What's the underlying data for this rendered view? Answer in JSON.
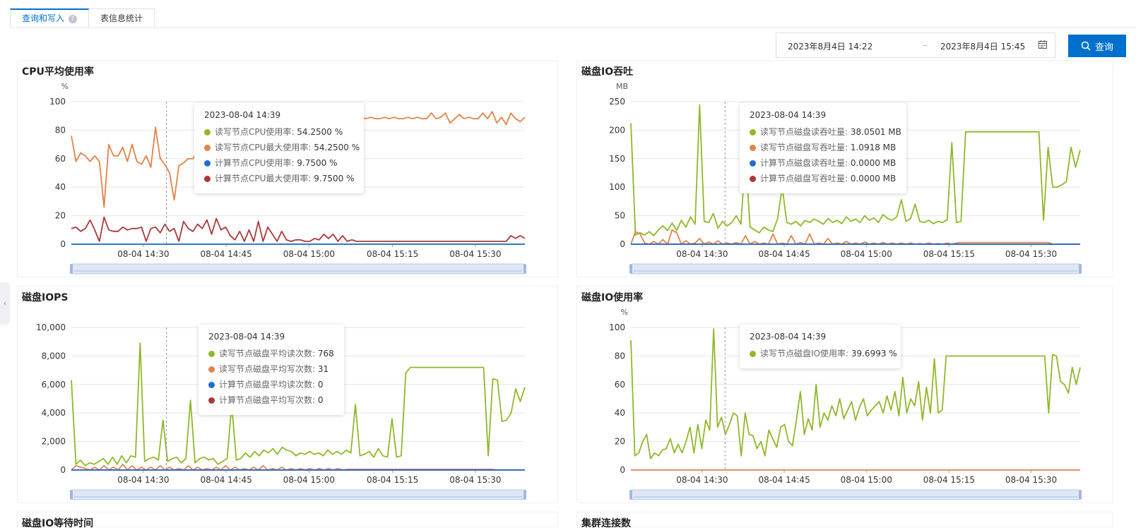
{
  "tabs": [
    {
      "label": "查询和写入",
      "active": true
    },
    {
      "label": "表信息统计",
      "active": false
    }
  ],
  "help_glyph": "?",
  "date_range": {
    "start": "2023年8月4日 14:22",
    "separator": "-",
    "end": "2023年8月4日 15:45"
  },
  "query_button": "查询",
  "colors": {
    "green": "#8fb82a",
    "orange": "#e0834a",
    "blue": "#1f6fd1",
    "red": "#a83a3a",
    "accent": "#0070cc"
  },
  "x_ticks": [
    "08-04 14:30",
    "08-04 14:45",
    "08-04 15:00",
    "08-04 15:15",
    "08-04 15:30"
  ],
  "panels": {
    "cpu": {
      "title": "CPU平均使用率",
      "unit": "%",
      "y_ticks": [
        "100",
        "80",
        "60",
        "40",
        "20",
        "0"
      ],
      "tooltip": {
        "title": "2023-08-04 14:39",
        "rows": [
          {
            "label": "读写节点CPU使用率: ",
            "value": "54.2500 %",
            "color": "green"
          },
          {
            "label": "读写节点CPU最大使用率: ",
            "value": "54.2500 %",
            "color": "orange"
          },
          {
            "label": "计算节点CPU使用率: ",
            "value": "9.7500 %",
            "color": "blue"
          },
          {
            "label": "计算节点CPU最大使用率: ",
            "value": "9.7500 %",
            "color": "red"
          }
        ]
      }
    },
    "disk_io": {
      "title": "磁盘IO吞吐",
      "unit": "MB",
      "y_ticks": [
        "250",
        "200",
        "150",
        "100",
        "50",
        "0"
      ],
      "tooltip": {
        "title": "2023-08-04 14:39",
        "rows": [
          {
            "label": "读写节点磁盘读吞吐量: ",
            "value": "38.0501 MB",
            "color": "green"
          },
          {
            "label": "读写节点磁盘写吞吐量: ",
            "value": "1.0918 MB",
            "color": "orange"
          },
          {
            "label": "计算节点磁盘读吞吐量: ",
            "value": "0.0000 MB",
            "color": "blue"
          },
          {
            "label": "计算节点磁盘写吞吐量: ",
            "value": "0.0000 MB",
            "color": "red"
          }
        ]
      }
    },
    "iops": {
      "title": "磁盘IOPS",
      "unit": "",
      "y_ticks": [
        "10,000",
        "8,000",
        "6,000",
        "4,000",
        "2,000",
        "0"
      ],
      "tooltip": {
        "title": "2023-08-04 14:39",
        "rows": [
          {
            "label": "读写节点磁盘平均读次数: ",
            "value": "768",
            "color": "green"
          },
          {
            "label": "读写节点磁盘平均写次数: ",
            "value": "31",
            "color": "orange"
          },
          {
            "label": "计算节点磁盘平均读次数: ",
            "value": "0",
            "color": "blue"
          },
          {
            "label": "计算节点磁盘平均写次数: ",
            "value": "0",
            "color": "red"
          }
        ]
      }
    },
    "io_usage": {
      "title": "磁盘IO使用率",
      "unit": "%",
      "y_ticks": [
        "100",
        "80",
        "60",
        "40",
        "20",
        "0"
      ],
      "tooltip": {
        "title": "2023-08-04 14:39",
        "rows": [
          {
            "label": "读写节点磁盘IO使用率: ",
            "value": "39.6993 %",
            "color": "green"
          }
        ]
      }
    },
    "io_wait": {
      "title": "磁盘IO等待时间"
    },
    "connections": {
      "title": "集群连接数"
    }
  },
  "chart_data": [
    {
      "type": "line",
      "title": "CPU平均使用率",
      "ylabel": "%",
      "ylim": [
        0,
        100
      ],
      "x_start": "2023-08-04 14:22",
      "x_end": "2023-08-04 15:45",
      "series": [
        {
          "color": "orange",
          "values": [
            76,
            58,
            64,
            62,
            58,
            62,
            58,
            26,
            70,
            62,
            62,
            68,
            58,
            70,
            58,
            56,
            62,
            54,
            82,
            60,
            56,
            50,
            31,
            55,
            57,
            60,
            60,
            65,
            70,
            80,
            85,
            88,
            90,
            88,
            90,
            86,
            88,
            92,
            89,
            90,
            93,
            89,
            88,
            90,
            88,
            89,
            88,
            86,
            92,
            88,
            89,
            90,
            89,
            92,
            88,
            88,
            89,
            88,
            89,
            88,
            92,
            88,
            89,
            88,
            89,
            88,
            88,
            89,
            88,
            89,
            88,
            88,
            89,
            88,
            89,
            88,
            88,
            92,
            88,
            89,
            92,
            85,
            88,
            91,
            88,
            89,
            88,
            88,
            92,
            88,
            93,
            85,
            89,
            84,
            92,
            88,
            86,
            89
          ]
        },
        {
          "color": "red",
          "values": [
            11,
            12,
            9,
            11,
            17,
            10,
            2,
            19,
            10,
            9,
            9,
            12,
            10,
            11,
            11,
            12,
            2,
            11,
            12,
            8,
            14,
            9,
            11,
            2,
            16,
            11,
            9,
            14,
            11,
            17,
            7,
            18,
            10,
            12,
            6,
            3,
            9,
            2,
            10,
            2,
            16,
            2,
            12,
            7,
            2,
            9,
            3,
            2,
            3,
            3,
            2,
            2,
            4,
            3,
            7,
            4,
            7,
            2,
            6,
            2,
            3,
            2,
            2,
            2,
            2,
            2,
            2,
            2,
            2,
            2,
            2,
            2,
            2,
            2,
            2,
            2,
            2,
            2,
            2,
            2,
            2,
            2,
            2,
            2,
            2,
            2,
            2,
            2,
            2,
            2,
            2,
            2,
            2,
            2,
            6,
            4,
            6,
            4
          ]
        },
        {
          "color": "green",
          "values": [
            0
          ]
        },
        {
          "color": "blue",
          "values": [
            0
          ]
        }
      ]
    },
    {
      "type": "line",
      "title": "磁盘IO吞吐",
      "ylabel": "MB",
      "ylim": [
        0,
        250
      ],
      "x_start": "2023-08-04 14:22",
      "x_end": "2023-08-04 15:45",
      "series": [
        {
          "color": "green",
          "values": [
            212,
            16,
            20,
            16,
            22,
            15,
            25,
            32,
            24,
            37,
            24,
            42,
            30,
            48,
            35,
            244,
            40,
            38,
            54,
            28,
            40,
            32,
            38,
            50,
            35,
            155,
            30,
            25,
            20,
            30,
            25,
            22,
            45,
            100,
            38,
            35,
            40,
            32,
            42,
            38,
            44,
            40,
            35,
            45,
            38,
            42,
            36,
            48,
            40,
            44,
            38,
            50,
            42,
            46,
            38,
            52,
            45,
            42,
            48,
            78,
            40,
            45,
            70,
            40,
            38,
            42,
            36,
            40,
            38,
            43,
            178,
            38,
            40,
            197,
            197,
            197,
            197,
            197,
            197,
            197,
            197,
            197,
            197,
            197,
            197,
            197,
            197,
            197,
            197,
            197,
            42,
            170,
            100,
            100,
            104,
            110,
            170,
            135,
            165
          ]
        },
        {
          "color": "orange",
          "values": [
            0,
            22,
            18,
            2,
            0,
            5,
            0,
            8,
            0,
            25,
            20,
            0,
            6,
            0,
            2,
            10,
            0,
            4,
            0,
            6,
            0,
            2,
            0,
            3,
            0,
            15,
            0,
            5,
            0,
            2,
            0,
            18,
            0,
            2,
            0,
            15,
            0,
            3,
            0,
            18,
            0,
            2,
            0,
            10,
            0,
            2,
            0,
            5,
            0,
            2,
            0,
            4,
            0,
            2,
            0,
            3,
            0,
            2,
            0,
            2,
            0,
            2,
            0,
            1,
            0,
            2,
            0,
            1,
            0,
            2,
            0,
            2,
            3,
            3,
            3,
            3,
            3,
            3,
            3,
            3,
            3,
            3,
            3,
            3,
            3,
            3,
            3,
            3,
            3,
            3,
            3,
            3,
            0,
            0,
            0,
            0,
            0,
            0,
            0
          ]
        },
        {
          "color": "red",
          "values": [
            0
          ]
        },
        {
          "color": "blue",
          "values": [
            0
          ]
        }
      ]
    },
    {
      "type": "line",
      "title": "磁盘IOPS",
      "ylim": [
        0,
        10000
      ],
      "x_start": "2023-08-04 14:22",
      "x_end": "2023-08-04 15:45",
      "series": [
        {
          "color": "green",
          "values": [
            6300,
            400,
            700,
            300,
            500,
            400,
            600,
            800,
            400,
            900,
            400,
            1000,
            500,
            1000,
            900,
            8900,
            600,
            800,
            900,
            700,
            3500,
            600,
            800,
            900,
            500,
            800,
            4900,
            500,
            800,
            900,
            700,
            800,
            400,
            600,
            800,
            4600,
            700,
            800,
            1200,
            900,
            1300,
            1000,
            1400,
            1200,
            1500,
            1100,
            1600,
            1400,
            1300,
            1000,
            1200,
            1100,
            1300,
            1100,
            1200,
            1000,
            1400,
            1100,
            1300,
            1100,
            1400,
            1200,
            4600,
            1000,
            1100,
            1300,
            900,
            1500,
            1000,
            900,
            3600,
            900,
            1000,
            6800,
            7200,
            7200,
            7200,
            7200,
            7200,
            7200,
            7200,
            7200,
            7200,
            7200,
            7200,
            7200,
            7200,
            7200,
            7200,
            7200,
            7200,
            1000,
            6400,
            6300,
            3400,
            3500,
            4000,
            5700,
            4800,
            5800
          ]
        },
        {
          "color": "orange",
          "values": [
            0,
            300,
            200,
            100,
            0,
            200,
            0,
            300,
            0,
            200,
            0,
            400,
            0,
            300,
            0,
            200,
            0,
            200,
            0,
            300,
            0,
            200,
            0,
            100,
            0,
            300,
            0,
            200,
            0,
            100,
            0,
            200,
            0,
            300,
            0,
            200,
            0,
            100,
            0,
            200,
            0,
            300,
            0,
            100,
            0,
            200,
            0,
            100,
            0,
            100,
            0,
            100,
            0,
            100,
            0,
            100,
            0,
            100,
            0,
            50,
            50,
            50,
            50,
            50,
            50,
            50,
            50,
            50,
            50,
            50,
            50,
            50,
            50,
            50,
            50,
            50,
            50,
            50,
            50,
            50,
            50,
            50,
            50,
            50,
            50,
            50,
            50,
            50,
            50,
            50,
            50,
            0,
            0,
            0,
            0,
            0,
            0,
            0
          ]
        },
        {
          "color": "red",
          "values": [
            0
          ]
        },
        {
          "color": "blue",
          "values": [
            0
          ]
        }
      ]
    },
    {
      "type": "line",
      "title": "磁盘IO使用率",
      "ylabel": "%",
      "ylim": [
        0,
        100
      ],
      "x_start": "2023-08-04 14:22",
      "x_end": "2023-08-04 15:45",
      "series": [
        {
          "color": "green",
          "values": [
            91,
            10,
            12,
            20,
            25,
            8,
            12,
            10,
            14,
            15,
            22,
            12,
            18,
            12,
            20,
            30,
            12,
            32,
            15,
            35,
            28,
            99,
            30,
            37,
            25,
            32,
            40,
            38,
            10,
            40,
            25,
            24,
            15,
            20,
            10,
            28,
            22,
            16,
            30,
            32,
            20,
            17,
            35,
            55,
            25,
            36,
            28,
            60,
            30,
            40,
            35,
            45,
            38,
            50,
            36,
            42,
            48,
            35,
            44,
            50,
            38,
            42,
            45,
            48,
            40,
            52,
            42,
            55,
            38,
            65,
            40,
            50,
            45,
            62,
            35,
            58,
            40,
            78,
            40,
            42,
            80,
            80,
            80,
            80,
            80,
            80,
            80,
            80,
            80,
            80,
            80,
            80,
            80,
            80,
            80,
            80,
            80,
            80,
            80,
            80,
            80,
            80,
            80,
            80,
            80,
            80,
            40,
            81,
            80,
            62,
            60,
            54,
            72,
            60,
            72
          ]
        },
        {
          "color": "orange",
          "values": [
            0
          ]
        }
      ]
    }
  ]
}
